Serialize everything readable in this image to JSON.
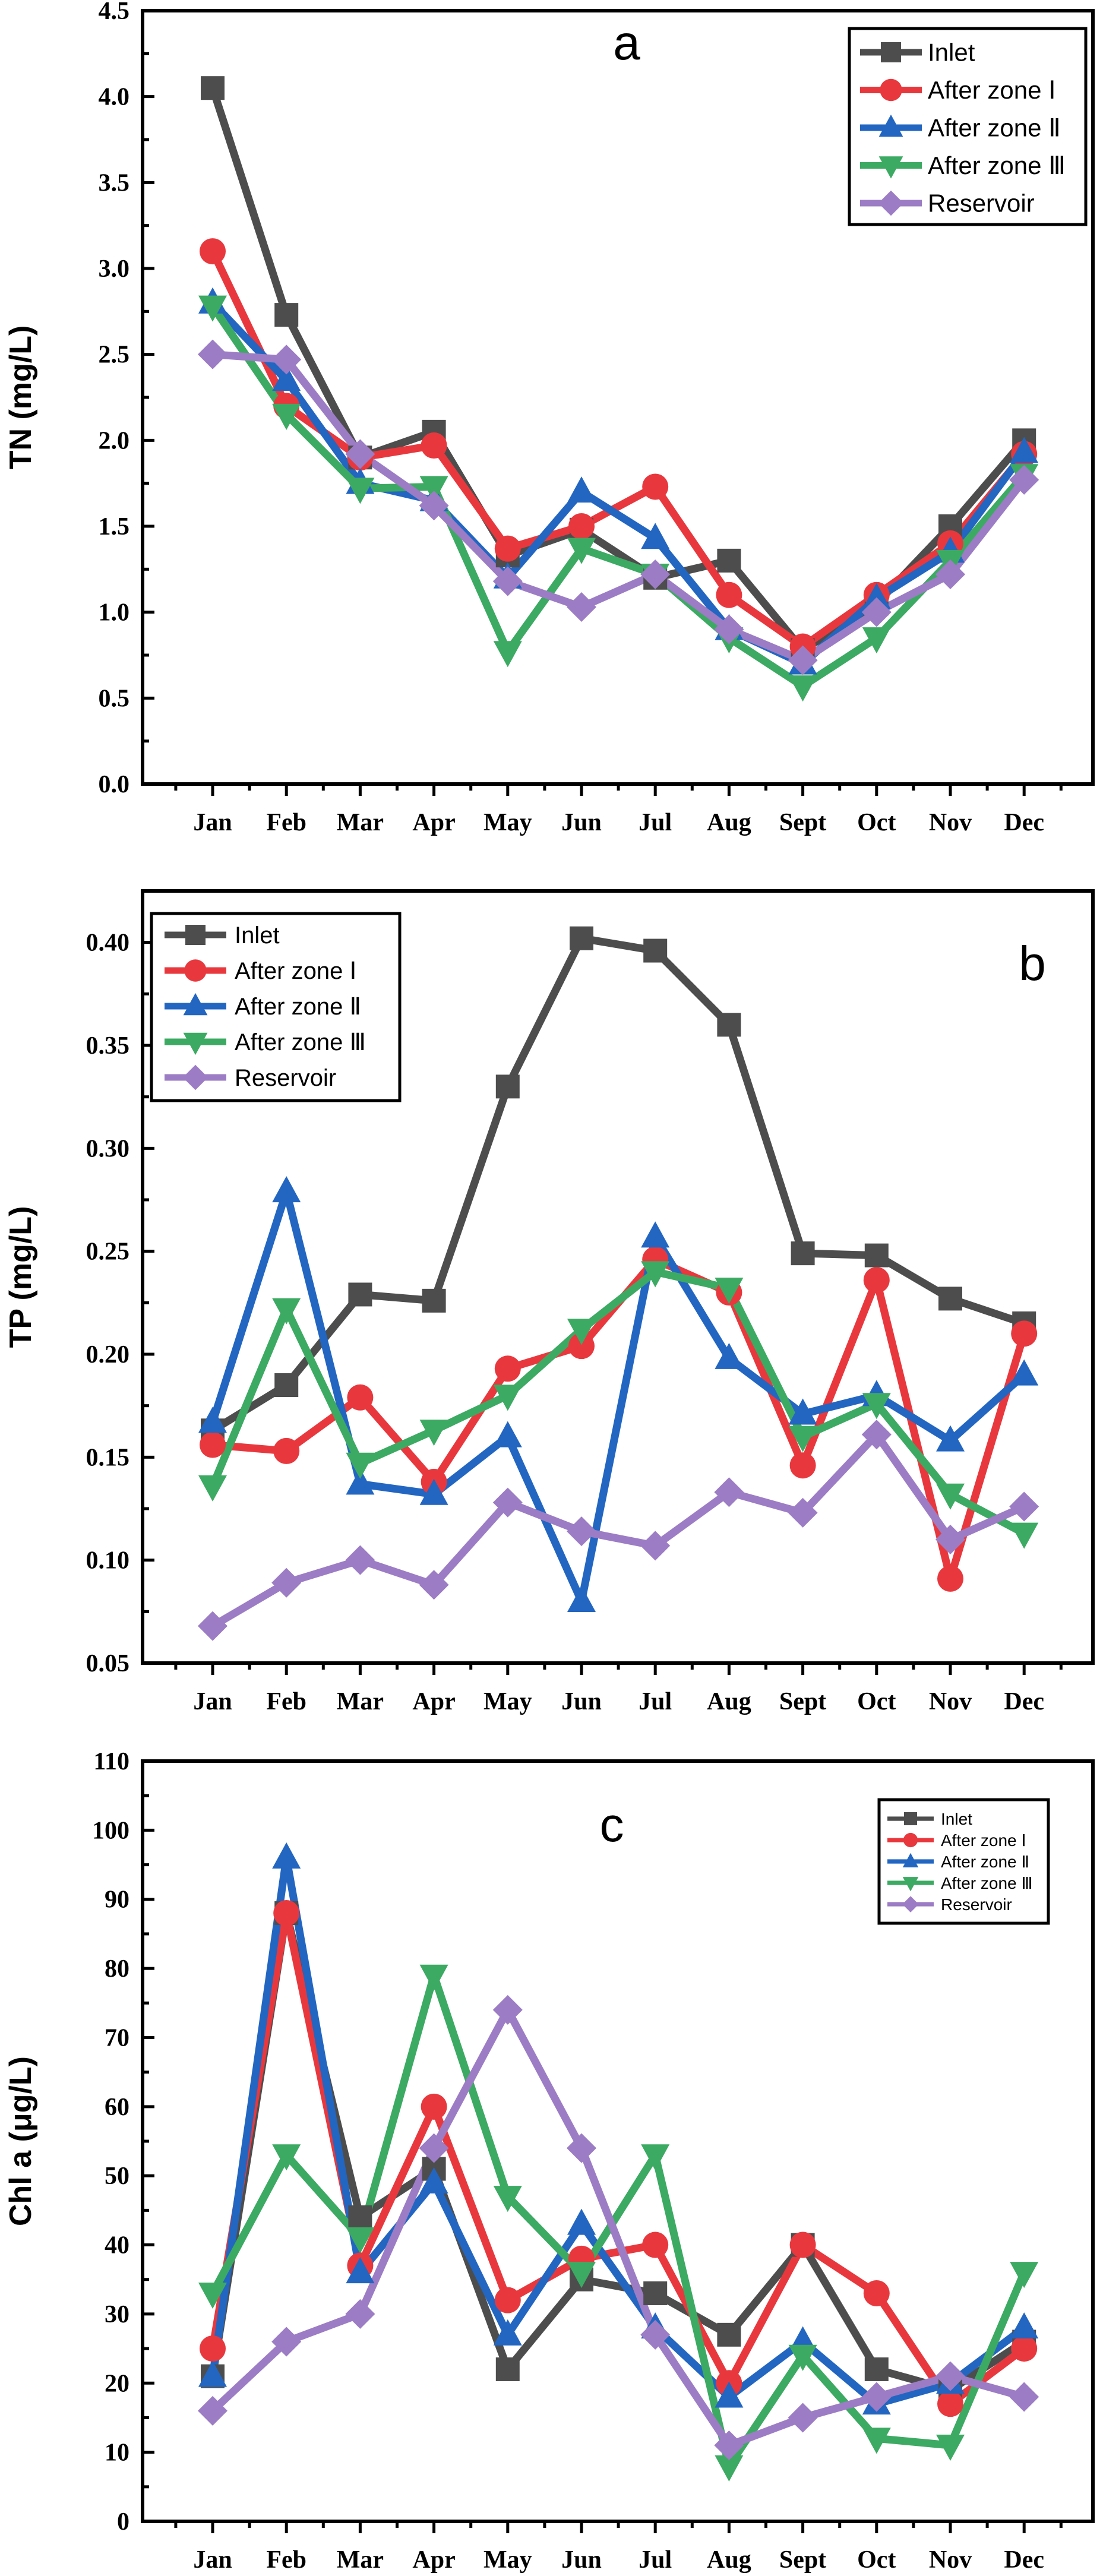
{
  "chart_data": [
    {
      "type": "line",
      "panel": "a",
      "title": "a",
      "xlabel": "",
      "ylabel": "TN (mg/L)",
      "ylim": [
        0,
        4.5
      ],
      "yticks": [
        "0.0",
        "0.5",
        "1.0",
        "1.5",
        "2.0",
        "2.5",
        "3.0",
        "3.5",
        "4.0",
        "4.5"
      ],
      "categories": [
        "Jan",
        "Feb",
        "Mar",
        "Apr",
        "May",
        "Jun",
        "Jul",
        "Aug",
        "Sept",
        "Oct",
        "Nov",
        "Dec"
      ],
      "legend_position": "top-right",
      "series": [
        {
          "name": "Inlet",
          "color": "#4d4d4d",
          "marker": "square",
          "values": [
            4.05,
            2.73,
            1.9,
            2.05,
            1.33,
            1.48,
            1.2,
            1.3,
            0.78,
            1.05,
            1.5,
            2.0
          ]
        },
        {
          "name": "After zone Ⅰ",
          "color": "#e8383d",
          "marker": "circle",
          "values": [
            3.1,
            2.2,
            1.9,
            1.97,
            1.37,
            1.5,
            1.73,
            1.1,
            0.8,
            1.1,
            1.4,
            1.92
          ]
        },
        {
          "name": "After zone Ⅱ",
          "color": "#2266c2",
          "marker": "triangle-up",
          "values": [
            2.8,
            2.35,
            1.75,
            1.65,
            1.2,
            1.7,
            1.43,
            0.9,
            0.7,
            1.08,
            1.35,
            1.93
          ]
        },
        {
          "name": "After zone Ⅲ",
          "color": "#3caa62",
          "marker": "triangle-down",
          "values": [
            2.78,
            2.15,
            1.72,
            1.73,
            0.77,
            1.37,
            1.22,
            0.85,
            0.57,
            0.85,
            1.3,
            1.8
          ]
        },
        {
          "name": "Reservoir",
          "color": "#9c7cc4",
          "marker": "diamond",
          "values": [
            2.5,
            2.47,
            1.92,
            1.62,
            1.18,
            1.03,
            1.22,
            0.9,
            0.72,
            1.0,
            1.22,
            1.77
          ]
        }
      ]
    },
    {
      "type": "line",
      "panel": "b",
      "title": "b",
      "xlabel": "",
      "ylabel": "TP (mg/L)",
      "ylim": [
        0.05,
        0.425
      ],
      "yticks": [
        "0.05",
        "0.10",
        "0.15",
        "0.20",
        "0.25",
        "0.30",
        "0.35",
        "0.40"
      ],
      "categories": [
        "Jan",
        "Feb",
        "Mar",
        "Apr",
        "May",
        "Jun",
        "Jul",
        "Aug",
        "Sept",
        "Oct",
        "Nov",
        "Dec"
      ],
      "legend_position": "top-left",
      "series": [
        {
          "name": "Inlet",
          "color": "#4d4d4d",
          "marker": "square",
          "values": [
            0.163,
            0.185,
            0.229,
            0.226,
            0.33,
            0.402,
            0.396,
            0.36,
            0.249,
            0.248,
            0.227,
            0.215
          ]
        },
        {
          "name": "After zone Ⅰ",
          "color": "#e8383d",
          "marker": "circle",
          "values": [
            0.156,
            0.153,
            0.179,
            0.138,
            0.193,
            0.204,
            0.246,
            0.23,
            0.146,
            0.236,
            0.091,
            0.21
          ]
        },
        {
          "name": "After zone Ⅱ",
          "color": "#2266c2",
          "marker": "triangle-up",
          "values": [
            0.167,
            0.279,
            0.137,
            0.132,
            0.16,
            0.08,
            0.257,
            0.198,
            0.171,
            0.18,
            0.158,
            0.19
          ]
        },
        {
          "name": "After zone Ⅲ",
          "color": "#3caa62",
          "marker": "triangle-down",
          "values": [
            0.136,
            0.222,
            0.147,
            0.163,
            0.18,
            0.212,
            0.24,
            0.232,
            0.16,
            0.176,
            0.132,
            0.113
          ]
        },
        {
          "name": "Reservoir",
          "color": "#9c7cc4",
          "marker": "diamond",
          "values": [
            0.068,
            0.089,
            0.1,
            0.088,
            0.128,
            0.114,
            0.107,
            0.133,
            0.123,
            0.161,
            0.11,
            0.126
          ]
        }
      ]
    },
    {
      "type": "line",
      "panel": "c",
      "title": "c",
      "xlabel": "",
      "ylabel": "Chl a (μg/L)",
      "ylim": [
        0,
        110
      ],
      "yticks": [
        "0",
        "10",
        "20",
        "30",
        "40",
        "50",
        "60",
        "70",
        "80",
        "90",
        "100",
        "110"
      ],
      "categories": [
        "Jan",
        "Feb",
        "Mar",
        "Apr",
        "May",
        "Jun",
        "Jul",
        "Aug",
        "Sept",
        "Oct",
        "Nov",
        "Dec"
      ],
      "legend_position": "top-right",
      "series": [
        {
          "name": "Inlet",
          "color": "#4d4d4d",
          "marker": "square",
          "values": [
            21,
            88,
            44,
            51,
            22,
            35,
            33,
            27,
            40,
            22,
            19,
            26
          ]
        },
        {
          "name": "After zone Ⅰ",
          "color": "#e8383d",
          "marker": "circle",
          "values": [
            25,
            88,
            37,
            60,
            32,
            38,
            40,
            20,
            40,
            33,
            17,
            25
          ]
        },
        {
          "name": "After zone Ⅱ",
          "color": "#2266c2",
          "marker": "triangle-up",
          "values": [
            21,
            96,
            36,
            49,
            27,
            43,
            28,
            18,
            26,
            17,
            20,
            28
          ]
        },
        {
          "name": "After zone Ⅲ",
          "color": "#3caa62",
          "marker": "triangle-down",
          "values": [
            33,
            53,
            41,
            79,
            47,
            36,
            53,
            8,
            24,
            12,
            11,
            36
          ]
        },
        {
          "name": "Reservoir",
          "color": "#9c7cc4",
          "marker": "diamond",
          "values": [
            16,
            26,
            30,
            54,
            74,
            54,
            27,
            11,
            15,
            18,
            21,
            18
          ]
        }
      ]
    }
  ]
}
